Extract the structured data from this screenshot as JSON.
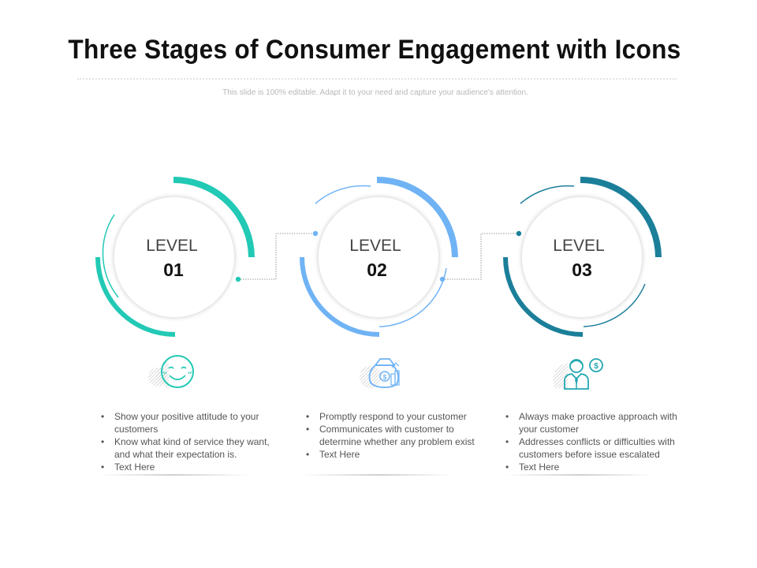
{
  "page": {
    "title": "Three Stages of Consumer Engagement with Icons",
    "subtitle": "This slide is 100% editable. Adapt it to your need and capture your audience's attention."
  },
  "levels": [
    {
      "word": "LEVEL",
      "number": "01",
      "color": "#22c9b5",
      "icon": "smiley-face-icon",
      "bullets": [
        "Show your positive attitude to your customers",
        "Know what kind of service they want, and what their expectation is.",
        "Text Here"
      ]
    },
    {
      "word": "LEVEL",
      "number": "02",
      "color": "#6fb3f5",
      "icon": "money-bag-growth-icon",
      "bullets": [
        "Promptly respond to your customer",
        "Communicates with customer to determine whether any problem exist",
        "Text Here"
      ]
    },
    {
      "word": "LEVEL",
      "number": "03",
      "color": "#1b7f9a",
      "icon": "businessman-dollar-icon",
      "bullets": [
        "Always make proactive approach with your customer",
        "Addresses conflicts or difficulties with customers before issue escalated",
        "Text Here"
      ]
    }
  ]
}
